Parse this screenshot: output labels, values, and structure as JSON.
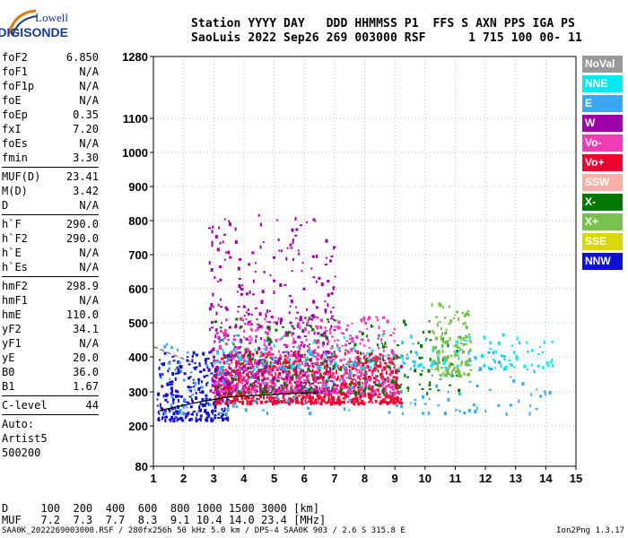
{
  "logo": {
    "brand_top": "Lowell",
    "brand_bottom": "DIGISONDE"
  },
  "header": {
    "line1": "Station YYYY DAY   DDD HHMMSS P1  FFS S AXN PPS IGA PS",
    "line2": "SaoLuis 2022 Sep26 269 003000 RSF      1 715 100 00- 11"
  },
  "params": {
    "group1": [
      {
        "k": "foF2",
        "v": "6.850"
      },
      {
        "k": "foF1",
        "v": "N/A"
      },
      {
        "k": "foF1p",
        "v": "N/A"
      },
      {
        "k": "foE",
        "v": "N/A"
      },
      {
        "k": "foEp",
        "v": "0.35"
      },
      {
        "k": "fxI",
        "v": "7.20"
      },
      {
        "k": "foEs",
        "v": "N/A"
      },
      {
        "k": "fmin",
        "v": "3.30"
      }
    ],
    "group2": [
      {
        "k": "MUF(D)",
        "v": "23.41"
      },
      {
        "k": "M(D)",
        "v": "3.42"
      },
      {
        "k": "D",
        "v": "N/A"
      }
    ],
    "group3": [
      {
        "k": "h`F",
        "v": "290.0"
      },
      {
        "k": "h`F2",
        "v": "290.0"
      },
      {
        "k": "h`E",
        "v": "N/A"
      },
      {
        "k": "h`Es",
        "v": "N/A"
      }
    ],
    "group4": [
      {
        "k": "hmF2",
        "v": "298.9"
      },
      {
        "k": "hmF1",
        "v": "N/A"
      },
      {
        "k": "hmE",
        "v": "110.0"
      },
      {
        "k": "yF2",
        "v": "34.1"
      },
      {
        "k": "yF1",
        "v": "N/A"
      },
      {
        "k": "yE",
        "v": "20.0"
      },
      {
        "k": "B0",
        "v": "36.0"
      },
      {
        "k": "B1",
        "v": "1.67"
      }
    ],
    "clevel": {
      "k": "C-level",
      "v": "44"
    },
    "auto": [
      "Auto:",
      "Artist5",
      "500200"
    ]
  },
  "footer": {
    "d_row": "D     100  200  400  600  800 1000 1500 3000 [km]",
    "muf_row": "MUF   7.2  7.3  7.7  8.3  9.1 10.4 14.0 23.4 [MHz]",
    "source": "SAA0K_2022269003000.RSF / 280fx256h 50 kHz 5.0 km / DPS-4 SAA0K 903 / 2.6 S 315.8 E",
    "version": "Ion2Png 1.3.17"
  },
  "legend": [
    {
      "label": "NoVal",
      "color": "#999999"
    },
    {
      "label": "NNE",
      "color": "#00e8f0"
    },
    {
      "label": "E",
      "color": "#3aa8f0"
    },
    {
      "label": "W",
      "color": "#a000a8"
    },
    {
      "label": "Vo-",
      "color": "#f03cb4"
    },
    {
      "label": "Vo+",
      "color": "#f00030"
    },
    {
      "label": "SSW",
      "color": "#f8b0a8"
    },
    {
      "label": "X-",
      "color": "#007800"
    },
    {
      "label": "X+",
      "color": "#78c050"
    },
    {
      "label": "SSE",
      "color": "#d8d800"
    },
    {
      "label": "NNW",
      "color": "#1010d0"
    }
  ],
  "chart_data": {
    "type": "scatter",
    "xlabel": "",
    "ylabel": "",
    "xlim": [
      1,
      15
    ],
    "ylim": [
      80,
      1280
    ],
    "x_ticks": [
      "1",
      "2",
      "3",
      "4",
      "5",
      "6",
      "7",
      "8",
      "9",
      "10",
      "11",
      "12",
      "13",
      "14",
      "15"
    ],
    "y_ticks": [
      "80",
      "200",
      "300",
      "400",
      "500",
      "600",
      "700",
      "800",
      "900",
      "1000",
      "1100",
      "1280"
    ],
    "y_tick_values": [
      80,
      200,
      300,
      400,
      500,
      600,
      700,
      800,
      900,
      1000,
      1100,
      1280
    ],
    "grid": true,
    "y_scale": "nonlinear",
    "profile_curve": [
      [
        1.2,
        245
      ],
      [
        2.5,
        270
      ],
      [
        3.5,
        285
      ],
      [
        4.5,
        290
      ],
      [
        5.5,
        295
      ],
      [
        6.5,
        298
      ]
    ],
    "trace_regions": [
      {
        "direction": "NNW",
        "color": "#1010d0",
        "x": [
          1.1,
          3.5
        ],
        "y": [
          220,
          420
        ]
      },
      {
        "direction": "Vo+",
        "color": "#f00030",
        "x": [
          3.0,
          9.2
        ],
        "y": [
          270,
          420
        ]
      },
      {
        "direction": "W",
        "color": "#a000a8",
        "x": [
          2.8,
          7.0
        ],
        "y": [
          300,
          820
        ]
      },
      {
        "direction": "Vo-",
        "color": "#f03cb4",
        "x": [
          3.0,
          9.0
        ],
        "y": [
          300,
          520
        ]
      },
      {
        "direction": "X-",
        "color": "#007800",
        "x": [
          3.0,
          11.2
        ],
        "y": [
          300,
          520
        ]
      },
      {
        "direction": "X+",
        "color": "#78c050",
        "x": [
          10.2,
          11.5
        ],
        "y": [
          350,
          560
        ]
      },
      {
        "direction": "NNE",
        "color": "#00e8f0",
        "x": [
          3.0,
          14.5
        ],
        "y": [
          370,
          470
        ]
      },
      {
        "direction": "E",
        "color": "#3aa8f0",
        "x": [
          1.2,
          14.2
        ],
        "y": [
          240,
          460
        ]
      }
    ]
  }
}
